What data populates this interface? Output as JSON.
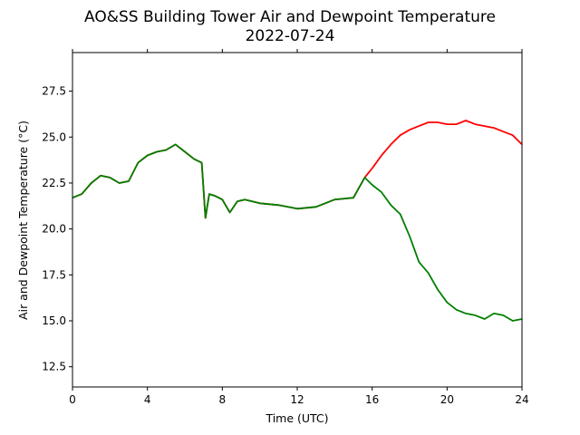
{
  "chart_data": {
    "type": "line",
    "title": "AO&SS Building Tower Air and Dewpoint Temperature",
    "subtitle": "2022-07-24",
    "xlabel": "Time (UTC)",
    "ylabel": "Air and Dewpoint Temperature (°C)",
    "xlim": [
      0,
      24
    ],
    "ylim": [
      11.4,
      29.6
    ],
    "xticks": [
      "0",
      "4",
      "8",
      "12",
      "16",
      "20",
      "24"
    ],
    "yticks": [
      "12.5",
      "15.0",
      "17.5",
      "20.0",
      "22.5",
      "25.0",
      "27.5"
    ],
    "grid": false,
    "legend": "none",
    "series": [
      {
        "color": "#ff0000",
        "x": [
          0,
          0.5,
          1,
          1.5,
          2,
          2.5,
          3,
          3.5,
          4,
          4.5,
          5,
          5.5,
          6,
          6.5,
          6.9,
          7.1,
          7.3,
          7.6,
          8,
          8.4,
          8.8,
          9.2,
          10,
          11,
          12,
          13,
          14,
          15,
          15.6,
          16,
          16.5,
          17,
          17.5,
          18,
          18.5,
          19,
          19.5,
          20,
          20.5,
          21,
          21.5,
          22,
          22.5,
          23,
          23.5,
          24
        ],
        "y": [
          21.7,
          21.9,
          22.5,
          22.9,
          22.8,
          22.5,
          22.6,
          23.6,
          24.0,
          24.2,
          24.3,
          24.6,
          24.2,
          23.8,
          23.6,
          20.6,
          21.9,
          21.8,
          21.6,
          20.9,
          21.5,
          21.6,
          21.4,
          21.3,
          21.1,
          21.2,
          21.6,
          21.7,
          22.8,
          23.3,
          24.0,
          24.6,
          25.1,
          25.4,
          25.6,
          25.8,
          25.8,
          25.7,
          25.7,
          25.9,
          25.7,
          25.6,
          25.5,
          25.3,
          25.1,
          24.6
        ]
      },
      {
        "color": "#008000",
        "x": [
          0,
          0.5,
          1,
          1.5,
          2,
          2.5,
          3,
          3.5,
          4,
          4.5,
          5,
          5.5,
          6,
          6.5,
          6.9,
          7.1,
          7.3,
          7.6,
          8,
          8.4,
          8.8,
          9.2,
          10,
          11,
          12,
          13,
          14,
          15,
          15.6,
          16,
          16.5,
          17,
          17.5,
          18,
          18.5,
          19,
          19.5,
          20,
          20.5,
          21,
          21.5,
          22,
          22.5,
          23,
          23.5,
          24
        ],
        "y": [
          21.7,
          21.9,
          22.5,
          22.9,
          22.8,
          22.5,
          22.6,
          23.6,
          24.0,
          24.2,
          24.3,
          24.6,
          24.2,
          23.8,
          23.6,
          20.6,
          21.9,
          21.8,
          21.6,
          20.9,
          21.5,
          21.6,
          21.4,
          21.3,
          21.1,
          21.2,
          21.6,
          21.7,
          22.8,
          22.4,
          22.0,
          21.3,
          20.8,
          19.6,
          18.2,
          17.6,
          16.7,
          16.0,
          15.6,
          15.4,
          15.3,
          15.1,
          15.4,
          15.3,
          15.0,
          15.1
        ]
      }
    ]
  }
}
